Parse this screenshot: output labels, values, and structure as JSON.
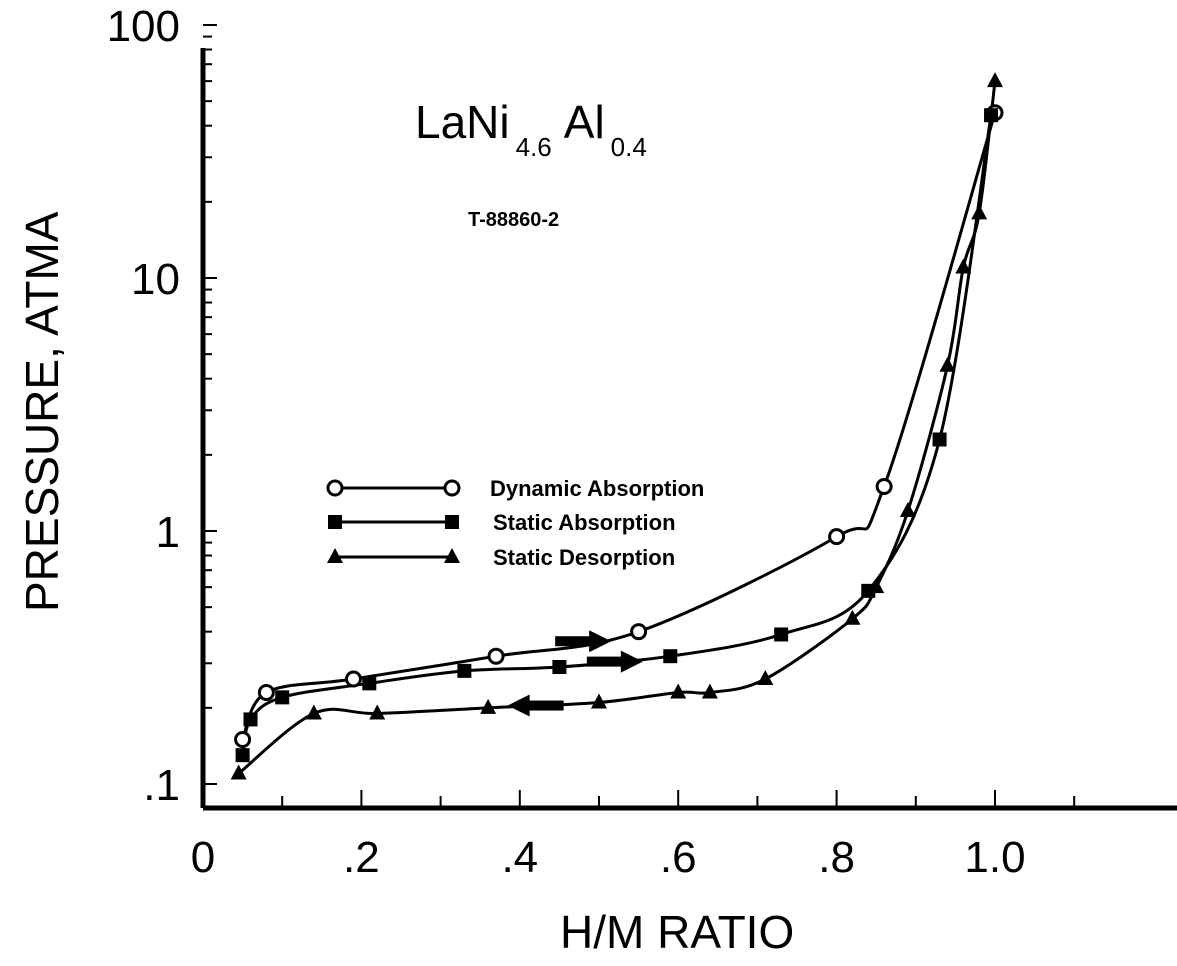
{
  "chart_data": {
    "type": "line",
    "title_parts": {
      "base1": "LaNi",
      "sub1": "4.6",
      "base2": "Al",
      "sub2": "0.4"
    },
    "annotation": "T-88860-2",
    "xlabel": "H/M RATIO",
    "ylabel": "PRESSURE, ATMA",
    "xlim": [
      0,
      1.1
    ],
    "ylim": [
      0.1,
      100
    ],
    "yscale": "log",
    "x_ticks": [
      0,
      0.2,
      0.4,
      0.6,
      0.8,
      1.0
    ],
    "x_tick_labels": [
      "0",
      ".2",
      ".4",
      ".6",
      ".8",
      "1.0"
    ],
    "y_ticks": [
      0.1,
      1,
      10,
      100
    ],
    "y_tick_labels": [
      ".1",
      "1",
      "10",
      "100"
    ],
    "grid": false,
    "legend_position": "center-left",
    "series": [
      {
        "name": "Dynamic Absorption",
        "marker": "open-circle",
        "x": [
          0.05,
          0.08,
          0.19,
          0.37,
          0.55,
          0.8,
          0.86,
          1.0
        ],
        "y": [
          0.15,
          0.23,
          0.26,
          0.32,
          0.4,
          0.95,
          1.5,
          45
        ],
        "direction": "absorption",
        "arrow_at_x": 0.48
      },
      {
        "name": "Static Absorption",
        "marker": "filled-square",
        "x": [
          0.05,
          0.06,
          0.1,
          0.21,
          0.33,
          0.45,
          0.59,
          0.73,
          0.84,
          0.93,
          0.995
        ],
        "y": [
          0.13,
          0.18,
          0.22,
          0.25,
          0.28,
          0.29,
          0.32,
          0.39,
          0.58,
          2.3,
          44
        ],
        "direction": "absorption",
        "arrow_at_x": 0.52
      },
      {
        "name": "Static Desorption",
        "marker": "filled-triangle",
        "x": [
          0.045,
          0.14,
          0.22,
          0.36,
          0.5,
          0.6,
          0.64,
          0.71,
          0.82,
          0.85,
          0.89,
          0.94,
          0.96,
          0.98,
          1.0
        ],
        "y": [
          0.11,
          0.19,
          0.19,
          0.2,
          0.21,
          0.23,
          0.23,
          0.26,
          0.45,
          0.6,
          1.2,
          4.5,
          11,
          18,
          60
        ],
        "direction": "desorption",
        "arrow_at_x": 0.42
      }
    ]
  },
  "colors": {
    "ink": "#000000",
    "background": "#ffffff"
  }
}
